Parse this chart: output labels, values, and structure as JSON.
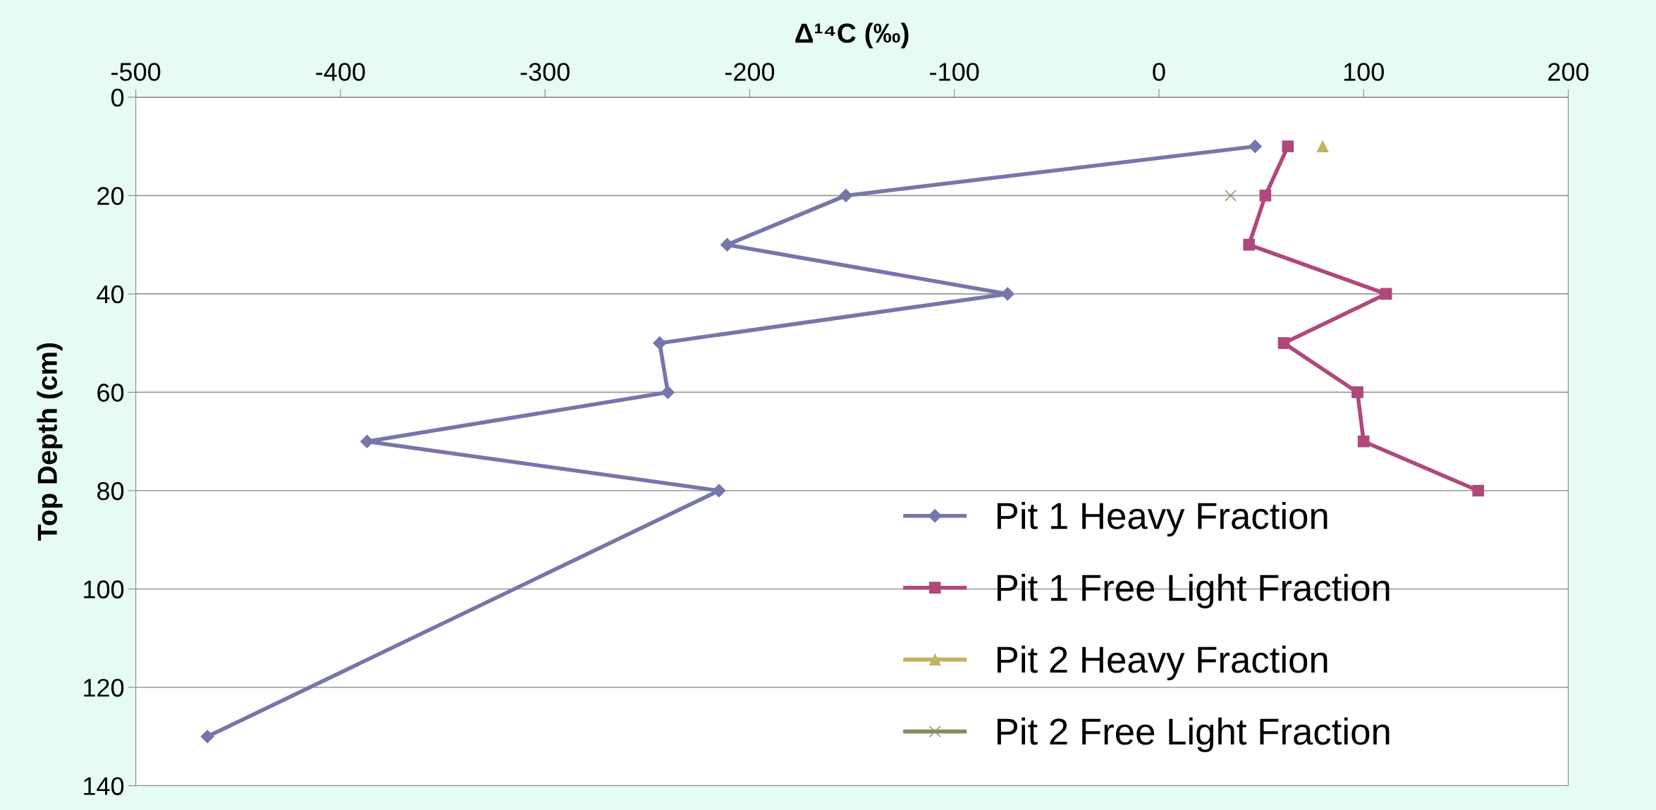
{
  "chart_data": {
    "type": "line",
    "xlabel": "Δ¹⁴C (‰)",
    "ylabel": "Top Depth (cm)",
    "xlim": [
      -500,
      200
    ],
    "xticks": [
      -500,
      -400,
      -300,
      -200,
      -100,
      0,
      100,
      200
    ],
    "ylim": [
      140,
      0
    ],
    "yticks": [
      0,
      20,
      40,
      60,
      80,
      100,
      120,
      140
    ],
    "grid": "y",
    "legend": "bottom right",
    "series": [
      {
        "name": "Pit 1 Heavy Fraction",
        "color": "#7676aa",
        "marker": "diamond",
        "x": [
          47,
          -153,
          -211,
          -74,
          -244,
          -240,
          -387,
          -215,
          -465
        ],
        "values": [
          10,
          20,
          30,
          40,
          50,
          60,
          70,
          80,
          130
        ]
      },
      {
        "name": "Pit 1 Free Light Fraction",
        "color": "#b0487c",
        "marker": "square",
        "x": [
          63,
          52,
          44,
          111,
          61,
          97,
          100,
          156
        ],
        "values": [
          10,
          20,
          30,
          40,
          50,
          60,
          70,
          80
        ]
      },
      {
        "name": "Pit 2 Heavy Fraction",
        "color": "#c2b462",
        "marker": "triangle",
        "x": [
          80
        ],
        "values": [
          10
        ]
      },
      {
        "name": "Pit 2 Free Light Fraction",
        "color": "#8a8a62",
        "marker": "cross",
        "x": [
          35
        ],
        "values": [
          20
        ]
      }
    ]
  }
}
